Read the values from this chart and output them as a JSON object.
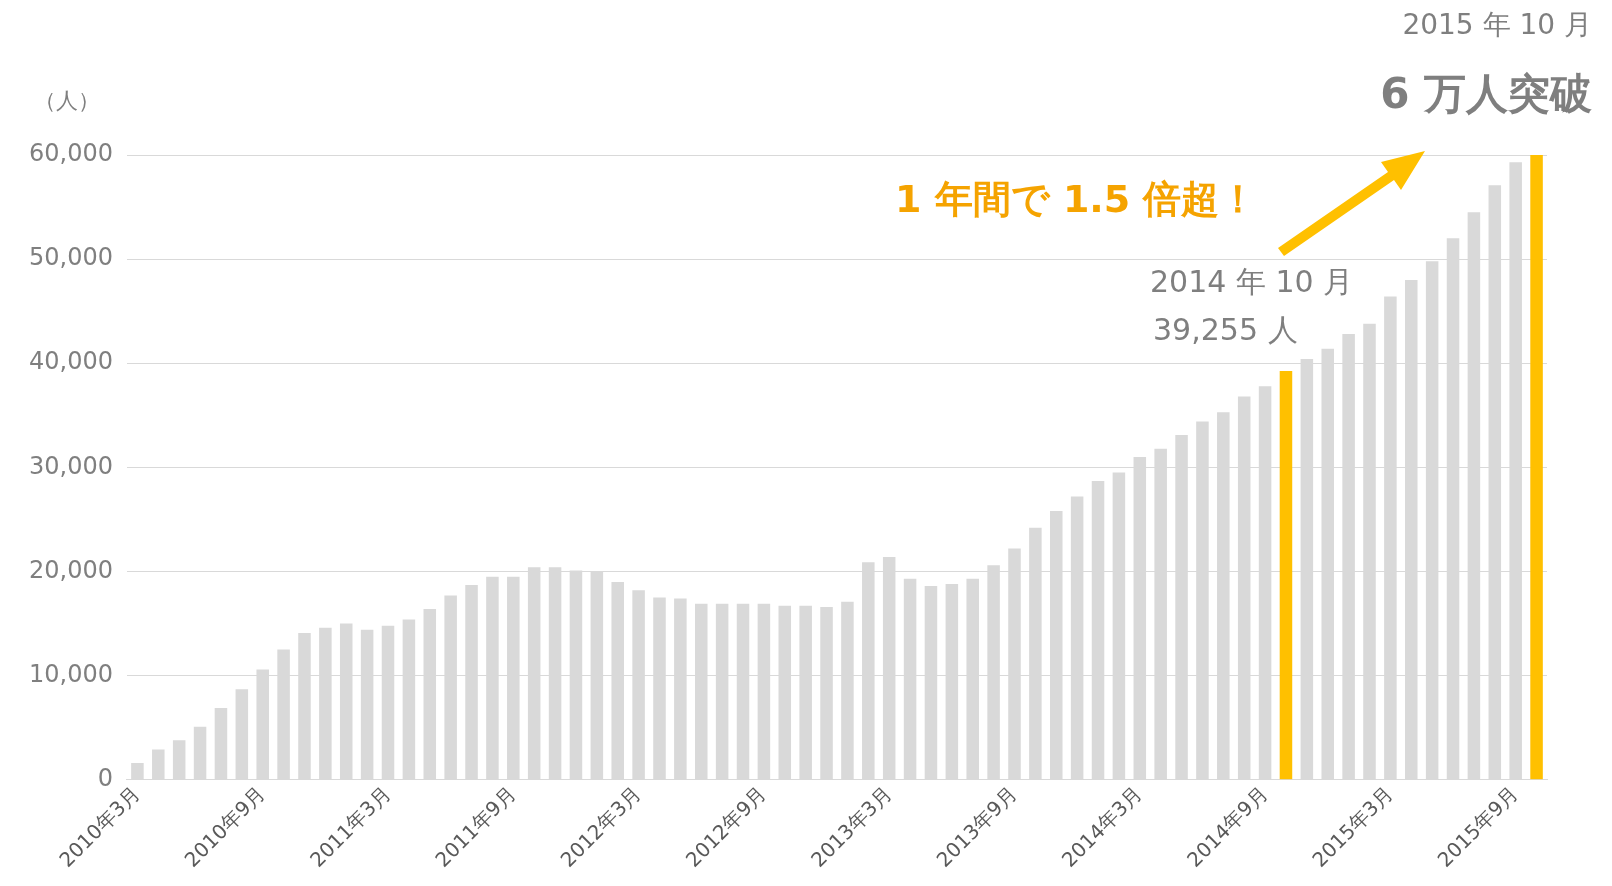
{
  "chart_data": {
    "type": "bar",
    "ylabel": "（人）",
    "title": "2015 年 10 月",
    "subtitle": "6 万人突破",
    "annotations": [
      "1 年間で 1.5 倍超！",
      "2014 年 10 月",
      "39,255 人"
    ],
    "categories": [
      "2010年3月",
      null,
      null,
      null,
      null,
      null,
      "2010年9月",
      null,
      null,
      null,
      null,
      null,
      "2011年3月",
      null,
      null,
      null,
      null,
      null,
      "2011年9月",
      null,
      null,
      null,
      null,
      null,
      "2012年3月",
      null,
      null,
      null,
      null,
      null,
      "2012年9月",
      null,
      null,
      null,
      null,
      null,
      "2013年3月",
      null,
      null,
      null,
      null,
      null,
      "2013年9月",
      null,
      null,
      null,
      null,
      null,
      "2014年3月",
      null,
      null,
      null,
      null,
      null,
      "2014年9月",
      null,
      null,
      null,
      null,
      null,
      "2015年3月",
      null,
      null,
      null,
      null,
      null,
      "2015年9月",
      null
    ],
    "values": [
      1600,
      2900,
      3800,
      5100,
      6900,
      8700,
      10600,
      12500,
      14100,
      14600,
      15000,
      14400,
      14800,
      15400,
      16400,
      17700,
      18700,
      19500,
      19500,
      20400,
      20400,
      20100,
      20000,
      19000,
      18200,
      17500,
      17400,
      16900,
      16900,
      16900,
      16900,
      16700,
      16700,
      16600,
      17100,
      20900,
      21400,
      19300,
      18600,
      18800,
      19300,
      20600,
      22200,
      24200,
      25800,
      27200,
      28700,
      29500,
      31000,
      31800,
      33100,
      34400,
      35300,
      36800,
      37800,
      39255,
      40400,
      41400,
      42800,
      43800,
      46400,
      48000,
      49800,
      52000,
      54500,
      57100,
      59300,
      60000
    ],
    "colors": [
      "#d9d9d9",
      "#d9d9d9",
      "#d9d9d9",
      "#d9d9d9",
      "#d9d9d9",
      "#d9d9d9",
      "#d9d9d9",
      "#d9d9d9",
      "#d9d9d9",
      "#d9d9d9",
      "#d9d9d9",
      "#d9d9d9",
      "#d9d9d9",
      "#d9d9d9",
      "#d9d9d9",
      "#d9d9d9",
      "#d9d9d9",
      "#d9d9d9",
      "#d9d9d9",
      "#d9d9d9",
      "#d9d9d9",
      "#d9d9d9",
      "#d9d9d9",
      "#d9d9d9",
      "#d9d9d9",
      "#d9d9d9",
      "#d9d9d9",
      "#d9d9d9",
      "#d9d9d9",
      "#d9d9d9",
      "#d9d9d9",
      "#d9d9d9",
      "#d9d9d9",
      "#d9d9d9",
      "#d9d9d9",
      "#d9d9d9",
      "#d9d9d9",
      "#d9d9d9",
      "#d9d9d9",
      "#d9d9d9",
      "#d9d9d9",
      "#d9d9d9",
      "#d9d9d9",
      "#d9d9d9",
      "#d9d9d9",
      "#d9d9d9",
      "#d9d9d9",
      "#d9d9d9",
      "#d9d9d9",
      "#d9d9d9",
      "#d9d9d9",
      "#d9d9d9",
      "#d9d9d9",
      "#d9d9d9",
      "#d9d9d9",
      "#ffc000",
      "#d9d9d9",
      "#d9d9d9",
      "#d9d9d9",
      "#d9d9d9",
      "#d9d9d9",
      "#d9d9d9",
      "#d9d9d9",
      "#d9d9d9",
      "#d9d9d9",
      "#d9d9d9",
      "#d9d9d9",
      "#ffc000"
    ],
    "ylim": [
      0,
      60000
    ],
    "yticks": [
      {
        "value": 0,
        "label": "0"
      },
      {
        "value": 10000,
        "label": "10,000"
      },
      {
        "value": 20000,
        "label": "20,000"
      },
      {
        "value": 30000,
        "label": "30,000"
      },
      {
        "value": 40000,
        "label": "40,000"
      },
      {
        "value": 50000,
        "label": "50,000"
      },
      {
        "value": 60000,
        "label": "60,000"
      }
    ],
    "grid": "y",
    "legend": false
  }
}
